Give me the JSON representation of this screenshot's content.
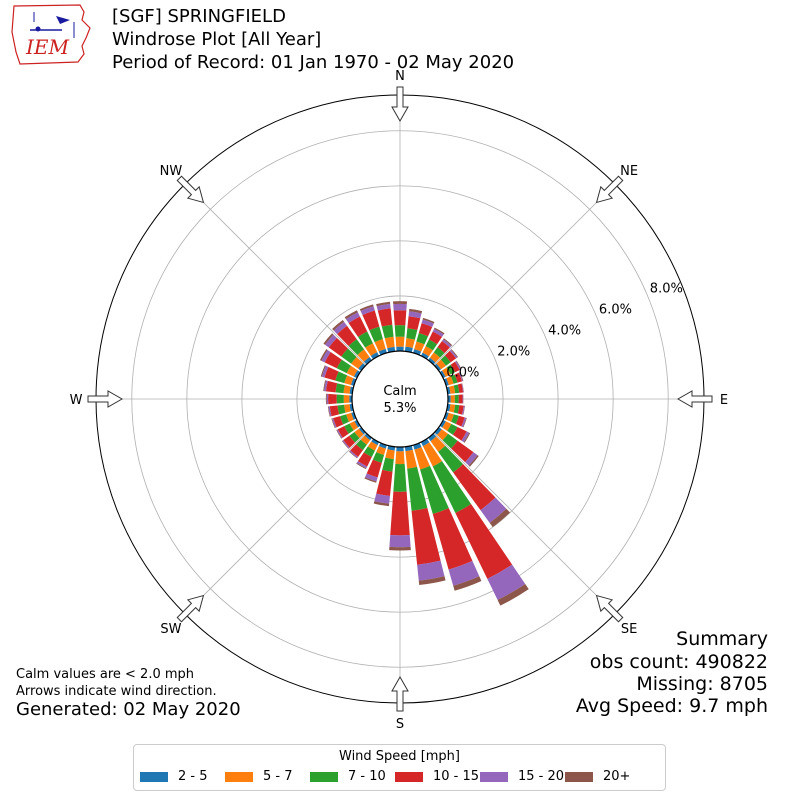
{
  "header": {
    "logo_text": "IEM",
    "title_line1": "[SGF] SPRINGFIELD",
    "title_line2": "Windrose Plot [All Year]",
    "title_line3": "Period of Record: 01 Jan 1970 - 02 May 2020"
  },
  "summary": {
    "heading": "Summary",
    "obs_count": "obs count: 490822",
    "missing": "Missing: 8705",
    "avg_speed": "Avg Speed: 9.7 mph"
  },
  "notes": {
    "calm_note": "Calm values are < 2.0 mph",
    "arrow_note": "Arrows indicate wind direction.",
    "generated": "Generated: 02 May 2020"
  },
  "colors": {
    "2 - 5": "#1f77b4",
    "5 - 7": "#ff7f0e",
    "7 - 10": "#2ca02c",
    "10 - 15": "#d62728",
    "15 - 20": "#9467bd",
    "20+": "#8c564b"
  },
  "chart_data": {
    "type": "windrose",
    "calm_label": "Calm",
    "calm_value": "5.3%",
    "radial_ticks": [
      0,
      2,
      4,
      6,
      8
    ],
    "radial_tick_labels": [
      "0.0%",
      "2.0%",
      "4.0%",
      "6.0%",
      "8.0%"
    ],
    "radial_max": 9.3,
    "compass": [
      "N",
      "NE",
      "E",
      "SE",
      "S",
      "SW",
      "W",
      "NW"
    ],
    "legend_title": "Wind Speed [mph]",
    "speed_bins": [
      "2 - 5",
      "5 - 7",
      "7 - 10",
      "10 - 15",
      "15 - 20",
      "20+"
    ],
    "directions_deg": [
      0,
      10,
      20,
      30,
      40,
      50,
      60,
      70,
      80,
      90,
      100,
      110,
      120,
      130,
      140,
      150,
      160,
      170,
      180,
      190,
      200,
      210,
      220,
      230,
      240,
      250,
      260,
      270,
      280,
      290,
      300,
      310,
      320,
      330,
      340,
      350
    ],
    "cumulative": [
      [
        0.16,
        0.52,
        0.94,
        1.48,
        1.71,
        1.81
      ],
      [
        0.17,
        0.48,
        0.84,
        1.28,
        1.46,
        1.55
      ],
      [
        0.14,
        0.43,
        0.75,
        1.12,
        1.26,
        1.32
      ],
      [
        0.13,
        0.39,
        0.66,
        0.98,
        1.09,
        1.14
      ],
      [
        0.11,
        0.35,
        0.58,
        0.86,
        0.94,
        0.98
      ],
      [
        0.1,
        0.32,
        0.53,
        0.77,
        0.83,
        0.86
      ],
      [
        0.1,
        0.3,
        0.48,
        0.67,
        0.72,
        0.74
      ],
      [
        0.1,
        0.28,
        0.43,
        0.6,
        0.63,
        0.65
      ],
      [
        0.1,
        0.27,
        0.42,
        0.56,
        0.58,
        0.59
      ],
      [
        0.1,
        0.25,
        0.39,
        0.53,
        0.55,
        0.56
      ],
      [
        0.1,
        0.27,
        0.42,
        0.58,
        0.62,
        0.63
      ],
      [
        0.1,
        0.29,
        0.48,
        0.7,
        0.76,
        0.78
      ],
      [
        0.11,
        0.33,
        0.58,
        0.95,
        1.05,
        1.09
      ],
      [
        0.13,
        0.41,
        0.84,
        1.55,
        1.73,
        1.79
      ],
      [
        0.15,
        0.62,
        1.55,
        3.24,
        3.81,
        4.0
      ],
      [
        0.16,
        0.98,
        2.86,
        5.52,
        6.37,
        6.6
      ],
      [
        0.17,
        0.92,
        2.6,
        4.7,
        5.31,
        5.5
      ],
      [
        0.16,
        0.8,
        2.34,
        4.31,
        4.89,
        5.05
      ],
      [
        0.16,
        0.62,
        1.63,
        3.21,
        3.64,
        3.76
      ],
      [
        0.14,
        0.45,
        0.91,
        1.8,
        2.08,
        2.17
      ],
      [
        0.13,
        0.37,
        0.67,
        1.22,
        1.37,
        1.42
      ],
      [
        0.12,
        0.34,
        0.6,
        0.98,
        1.06,
        1.09
      ],
      [
        0.11,
        0.31,
        0.55,
        0.85,
        0.9,
        0.92
      ],
      [
        0.1,
        0.3,
        0.53,
        0.8,
        0.84,
        0.86
      ],
      [
        0.1,
        0.29,
        0.51,
        0.77,
        0.81,
        0.83
      ],
      [
        0.1,
        0.29,
        0.52,
        0.78,
        0.83,
        0.85
      ],
      [
        0.1,
        0.3,
        0.54,
        0.82,
        0.87,
        0.89
      ],
      [
        0.1,
        0.3,
        0.56,
        0.87,
        0.92,
        0.95
      ],
      [
        0.1,
        0.32,
        0.61,
        0.96,
        1.03,
        1.06
      ],
      [
        0.11,
        0.36,
        0.7,
        1.11,
        1.21,
        1.25
      ],
      [
        0.12,
        0.41,
        0.81,
        1.3,
        1.43,
        1.49
      ],
      [
        0.13,
        0.45,
        0.89,
        1.45,
        1.62,
        1.69
      ],
      [
        0.14,
        0.48,
        0.94,
        1.54,
        1.72,
        1.8
      ],
      [
        0.15,
        0.51,
        0.98,
        1.59,
        1.76,
        1.84
      ],
      [
        0.15,
        0.52,
        0.99,
        1.6,
        1.76,
        1.83
      ],
      [
        0.16,
        0.53,
        0.97,
        1.57,
        1.73,
        1.81
      ]
    ]
  }
}
